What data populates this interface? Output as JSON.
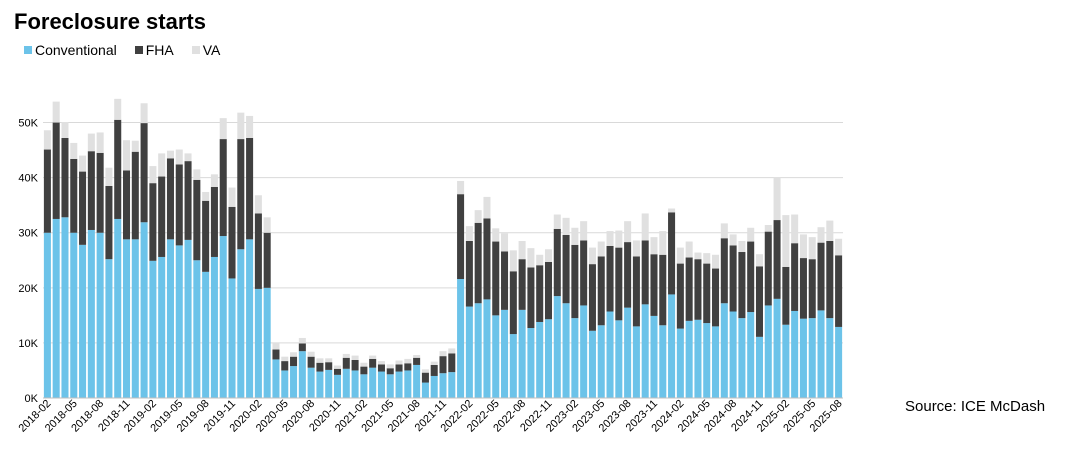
{
  "source": "Source: ICE McDash",
  "chart_data": {
    "type": "bar",
    "stacked": true,
    "title": "Foreclosure starts",
    "xlabel": "",
    "ylabel": "",
    "ylim": [
      0,
      55000
    ],
    "yticks": [
      0,
      10000,
      20000,
      30000,
      40000,
      50000
    ],
    "ytick_labels": [
      "0K",
      "10K",
      "20K",
      "30K",
      "40K",
      "50K"
    ],
    "grid": "horizontal",
    "legend": "top-left",
    "x_label_every": 3,
    "categories": [
      "2018-02",
      "2018-03",
      "2018-04",
      "2018-05",
      "2018-06",
      "2018-07",
      "2018-08",
      "2018-09",
      "2018-10",
      "2018-11",
      "2018-12",
      "2019-01",
      "2019-02",
      "2019-03",
      "2019-04",
      "2019-05",
      "2019-06",
      "2019-07",
      "2019-08",
      "2019-09",
      "2019-10",
      "2019-11",
      "2019-12",
      "2020-01",
      "2020-02",
      "2020-03",
      "2020-04",
      "2020-05",
      "2020-06",
      "2020-07",
      "2020-08",
      "2020-09",
      "2020-10",
      "2020-11",
      "2020-12",
      "2021-01",
      "2021-02",
      "2021-03",
      "2021-04",
      "2021-05",
      "2021-06",
      "2021-07",
      "2021-08",
      "2021-09",
      "2021-10",
      "2021-11",
      "2021-12",
      "2022-01",
      "2022-02",
      "2022-03",
      "2022-04",
      "2022-05",
      "2022-06",
      "2022-07",
      "2022-08",
      "2022-09",
      "2022-10",
      "2022-11",
      "2022-12",
      "2023-01",
      "2023-02",
      "2023-03",
      "2023-04",
      "2023-05",
      "2023-06",
      "2023-07",
      "2023-08",
      "2023-09",
      "2023-10",
      "2023-11",
      "2023-12",
      "2024-01",
      "2024-02",
      "2024-03",
      "2024-04",
      "2024-05",
      "2024-06",
      "2024-07",
      "2024-08",
      "2024-09",
      "2024-10",
      "2024-11",
      "2024-12",
      "2025-01",
      "2025-02",
      "2025-03",
      "2025-04",
      "2025-05",
      "2025-06",
      "2025-07",
      "2025-08"
    ],
    "series": [
      {
        "name": "Conventional",
        "color": "#6cc3e9",
        "values": [
          30000,
          32500,
          32800,
          30000,
          27800,
          30500,
          30000,
          25200,
          32500,
          28800,
          28800,
          31900,
          24900,
          25600,
          28800,
          27700,
          28700,
          25000,
          22900,
          25600,
          29400,
          21700,
          27000,
          28800,
          19800,
          20000,
          7000,
          5000,
          5800,
          8500,
          5500,
          4800,
          5100,
          4200,
          5300,
          5000,
          4300,
          5500,
          4800,
          4300,
          4800,
          5000,
          6000,
          2800,
          4000,
          4500,
          4700,
          21600,
          16600,
          17200,
          17900,
          15000,
          16000,
          11600,
          16000,
          12700,
          13800,
          14300,
          18500,
          17200,
          14500,
          16800,
          12200,
          13200,
          15700,
          14100,
          16400,
          13000,
          17000,
          14900,
          13200,
          18800,
          12600,
          14000,
          14200,
          13600,
          13000,
          17200,
          15700,
          14500,
          15600,
          11100,
          16800,
          18000,
          13300,
          15800,
          14400,
          14500,
          15900,
          14500,
          12900
        ]
      },
      {
        "name": "FHA",
        "color": "#404040",
        "values": [
          15100,
          17500,
          14400,
          13400,
          13300,
          14300,
          14500,
          13300,
          18000,
          12500,
          15900,
          18000,
          14100,
          14600,
          14700,
          14700,
          14300,
          14600,
          12900,
          12700,
          17600,
          13000,
          20000,
          18400,
          13700,
          10000,
          1800,
          1700,
          1700,
          1400,
          2000,
          1600,
          1400,
          1100,
          2000,
          1900,
          1400,
          1600,
          1300,
          1100,
          1300,
          1300,
          1300,
          1800,
          2000,
          3100,
          3400,
          15400,
          11900,
          14600,
          14700,
          13400,
          10600,
          11400,
          9200,
          11000,
          10300,
          10400,
          12200,
          12400,
          13300,
          11800,
          12100,
          12500,
          11900,
          13200,
          11900,
          12700,
          11600,
          11200,
          12800,
          14900,
          11800,
          11500,
          11000,
          10800,
          10500,
          11800,
          12000,
          12000,
          12800,
          12800,
          13400,
          14300,
          10500,
          12300,
          11000,
          10700,
          12300,
          14000,
          13000
        ]
      },
      {
        "name": "VA",
        "color": "#e0e0e0",
        "values": [
          3500,
          3800,
          2900,
          2900,
          2900,
          3200,
          3700,
          3300,
          3800,
          5500,
          2000,
          3600,
          3100,
          4200,
          1400,
          2700,
          1400,
          1900,
          1600,
          2300,
          3800,
          3500,
          4800,
          4000,
          3300,
          2800,
          1200,
          800,
          800,
          1000,
          900,
          800,
          700,
          600,
          700,
          800,
          700,
          600,
          600,
          700,
          700,
          800,
          500,
          600,
          600,
          900,
          900,
          2400,
          2700,
          2300,
          3900,
          2400,
          3300,
          3800,
          3300,
          3500,
          1900,
          2300,
          2600,
          3100,
          3100,
          3500,
          3000,
          2700,
          2700,
          3100,
          3800,
          2900,
          4900,
          3100,
          4300,
          700,
          2900,
          2900,
          1200,
          1900,
          2500,
          2700,
          2000,
          2000,
          2500,
          2200,
          1200,
          7800,
          9400,
          5200,
          4300,
          4000,
          2800,
          3700,
          3000
        ]
      }
    ]
  }
}
